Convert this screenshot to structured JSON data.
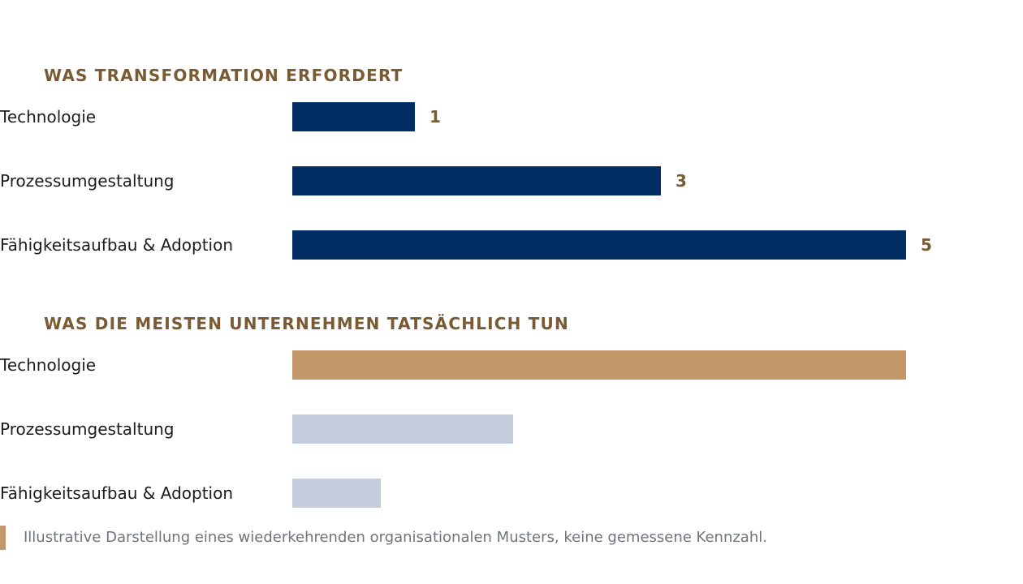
{
  "chart_data": [
    {
      "type": "bar",
      "orientation": "horizontal",
      "title": "WAS TRANSFORMATION ERFORDERT",
      "categories": [
        "Technologie",
        "Prozessumgestaltung",
        "Fähigkeitsaufbau & Adoption"
      ],
      "values": [
        1,
        3,
        5
      ],
      "value_labels": [
        "1",
        "3",
        "5"
      ],
      "bar_colors": [
        "#002d62",
        "#002d62",
        "#002d62"
      ],
      "xlim": [
        0,
        5
      ],
      "grid": false,
      "legend": "none"
    },
    {
      "type": "bar",
      "orientation": "horizontal",
      "title": "WAS DIE MEISTEN UNTERNEHMEN TATSÄCHLICH TUN",
      "categories": [
        "Technologie",
        "Prozessumgestaltung",
        "Fähigkeitsaufbau & Adoption"
      ],
      "values": [
        5,
        1.8,
        0.72
      ],
      "value_labels": [
        "",
        "",
        ""
      ],
      "bar_colors": [
        "#c4976a",
        "#c3ccda",
        "#c3ccda"
      ],
      "xlim": [
        0,
        5
      ],
      "grid": false,
      "legend": "none"
    }
  ],
  "footnote": {
    "text": "Illustrative Darstellung eines wiederkehrenden organisationalen Musters, keine gemessene Kennzahl.",
    "accent_color": "#c4976a"
  },
  "colors": {
    "title": "#7a5a32",
    "value_label": "#7a5a32",
    "category_label": "#1c1c1c",
    "footnote_text": "#6e747c"
  }
}
